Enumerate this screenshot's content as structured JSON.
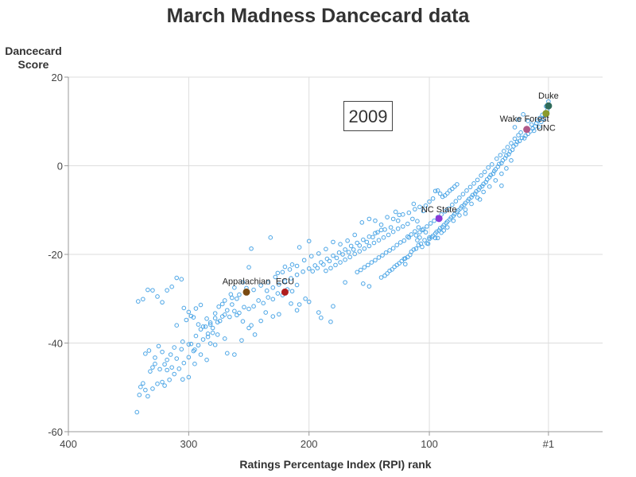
{
  "title": "March Madness Dancecard data",
  "chart_data": {
    "type": "scatter",
    "title": "March Madness Dancecard data",
    "xlabel": "Ratings Percentage Index (RPI) rank",
    "ylabel_lines": [
      "Dancecard",
      "Score"
    ],
    "annotation": "2009",
    "x_reversed": true,
    "xlim": [
      400,
      -44
    ],
    "ylim": [
      -60,
      20
    ],
    "x_ticks": [
      {
        "value": 400,
        "label": "400"
      },
      {
        "value": 300,
        "label": "300"
      },
      {
        "value": 200,
        "label": "200"
      },
      {
        "value": 100,
        "label": "100"
      },
      {
        "value": 1,
        "label": "#1"
      }
    ],
    "y_ticks": [
      {
        "value": 20,
        "label": "20"
      },
      {
        "value": 0,
        "label": "0"
      },
      {
        "value": -20,
        "label": "-20"
      },
      {
        "value": -40,
        "label": "-40"
      },
      {
        "value": -60,
        "label": "-60"
      }
    ],
    "grid": true,
    "colors": {
      "points": "#4da6e6",
      "grid": "#dddddd",
      "axis": "#999999"
    },
    "highlighted": [
      {
        "name": "Duke",
        "x": 1,
        "y": 13.5,
        "color": "#2f6b5a"
      },
      {
        "name": "UNC",
        "x": 3,
        "y": 11.8,
        "color": "#8a9a2c"
      },
      {
        "name": "Wake Forest",
        "x": 19,
        "y": 8.2,
        "color": "#b05a8a"
      },
      {
        "name": "NC State",
        "x": 92,
        "y": -11.9,
        "color": "#8a3ad6"
      },
      {
        "name": "ECU",
        "x": 220,
        "y": -28.5,
        "color": "#b01c1c"
      },
      {
        "name": "Appalachian",
        "x": 252,
        "y": -28.5,
        "color": "#7a4a12"
      }
    ],
    "points": [
      [
        1,
        14.5
      ],
      [
        2,
        12.5
      ],
      [
        4,
        11.5
      ],
      [
        6,
        11.5
      ],
      [
        8,
        10.8
      ],
      [
        10,
        10.2
      ],
      [
        11,
        9.6
      ],
      [
        12,
        8.9
      ],
      [
        14,
        8.4
      ],
      [
        16,
        7.8
      ],
      [
        18,
        7.2
      ],
      [
        20,
        6.8
      ],
      [
        21,
        6.2
      ],
      [
        23,
        6.3
      ],
      [
        25,
        5.6
      ],
      [
        27,
        5.4
      ],
      [
        28,
        4.8
      ],
      [
        30,
        4.4
      ],
      [
        31,
        3.6
      ],
      [
        33,
        3.2
      ],
      [
        34,
        2.6
      ],
      [
        36,
        2.3
      ],
      [
        37,
        1.7
      ],
      [
        39,
        1.2
      ],
      [
        40,
        0.6
      ],
      [
        42,
        0.4
      ],
      [
        43,
        -0.2
      ],
      [
        45,
        -0.8
      ],
      [
        46,
        -1.2
      ],
      [
        47,
        -1.8
      ],
      [
        49,
        -2.1
      ],
      [
        50,
        -2.6
      ],
      [
        52,
        -3.1
      ],
      [
        53,
        -3.7
      ],
      [
        55,
        -4.1
      ],
      [
        56,
        -4.6
      ],
      [
        58,
        -4.9
      ],
      [
        59,
        -5.4
      ],
      [
        61,
        -5.8
      ],
      [
        62,
        -6.3
      ],
      [
        64,
        -6.6
      ],
      [
        65,
        -7.1
      ],
      [
        67,
        -7.5
      ],
      [
        68,
        -7.9
      ],
      [
        70,
        -8.4
      ],
      [
        71,
        -8.8
      ],
      [
        73,
        -9.2
      ],
      [
        74,
        -9.6
      ],
      [
        76,
        -10.1
      ],
      [
        77,
        -10.4
      ],
      [
        79,
        -10.9
      ],
      [
        80,
        -11.3
      ],
      [
        82,
        -11.7
      ],
      [
        83,
        -12.1
      ],
      [
        85,
        -12.6
      ],
      [
        86,
        -12.9
      ],
      [
        88,
        -13.4
      ],
      [
        89,
        -13.8
      ],
      [
        91,
        -14.1
      ],
      [
        92,
        -14.6
      ],
      [
        94,
        -14.9
      ],
      [
        95,
        -15.3
      ],
      [
        97,
        -15.8
      ],
      [
        98,
        -16.1
      ],
      [
        100,
        -16.5
      ],
      [
        24,
        7.5
      ],
      [
        26,
        6.9
      ],
      [
        29,
        6.1
      ],
      [
        32,
        5.1
      ],
      [
        35,
        4.2
      ],
      [
        38,
        3.3
      ],
      [
        41,
        2.4
      ],
      [
        44,
        1.6
      ],
      [
        48,
        0.3
      ],
      [
        51,
        -0.4
      ],
      [
        54,
        -1.4
      ],
      [
        57,
        -2.2
      ],
      [
        60,
        -3.2
      ],
      [
        63,
        -4.0
      ],
      [
        66,
        -4.8
      ],
      [
        69,
        -5.6
      ],
      [
        72,
        -6.4
      ],
      [
        75,
        -7.2
      ],
      [
        78,
        -8.0
      ],
      [
        81,
        -8.8
      ],
      [
        84,
        -9.7
      ],
      [
        87,
        -10.3
      ],
      [
        90,
        -11.0
      ],
      [
        93,
        -11.6
      ],
      [
        96,
        -12.4
      ],
      [
        99,
        -13.0
      ],
      [
        102,
        -13.7
      ],
      [
        105,
        -14.3
      ],
      [
        108,
        -15.0
      ],
      [
        111,
        -15.7
      ],
      [
        32,
        1.2
      ],
      [
        36,
        -0.6
      ],
      [
        40,
        -1.8
      ],
      [
        45,
        -3.3
      ],
      [
        50,
        -4.7
      ],
      [
        55,
        -5.9
      ],
      [
        60,
        -7.2
      ],
      [
        65,
        -8.6
      ],
      [
        70,
        -9.9
      ],
      [
        75,
        -11.2
      ],
      [
        80,
        -12.4
      ],
      [
        85,
        -13.9
      ],
      [
        90,
        -15.1
      ],
      [
        95,
        -16.3
      ],
      [
        101,
        -17.6
      ],
      [
        22,
        11.6
      ],
      [
        18,
        10.1
      ],
      [
        15,
        9.3
      ],
      [
        13,
        7.9
      ],
      [
        9,
        8.8
      ],
      [
        7,
        9.9
      ],
      [
        5,
        10.6
      ],
      [
        3,
        13.4
      ],
      [
        26,
        10.4
      ],
      [
        29,
        8.7
      ],
      [
        40,
        -4.5
      ],
      [
        58,
        -7.6
      ],
      [
        70,
        -10.8
      ],
      [
        88,
        -14.6
      ],
      [
        93,
        -16.3
      ],
      [
        100,
        -16.2
      ],
      [
        108,
        -16.2
      ],
      [
        110,
        -16.8
      ],
      [
        117,
        -16.2
      ],
      [
        120,
        -20.9
      ],
      [
        120,
        -22.2
      ],
      [
        102,
        -17.5
      ],
      [
        104,
        -16.8
      ],
      [
        106,
        -18.3
      ],
      [
        107,
        -17.6
      ],
      [
        109,
        -17.9
      ],
      [
        111,
        -18.7
      ],
      [
        113,
        -18.9
      ],
      [
        115,
        -19.4
      ],
      [
        116,
        -20.1
      ],
      [
        118,
        -20.6
      ],
      [
        121,
        -21.0
      ],
      [
        123,
        -21.5
      ],
      [
        125,
        -22.0
      ],
      [
        127,
        -22.4
      ],
      [
        129,
        -22.8
      ],
      [
        131,
        -23.4
      ],
      [
        133,
        -23.7
      ],
      [
        135,
        -24.3
      ],
      [
        137,
        -24.8
      ],
      [
        140,
        -25.2
      ],
      [
        103,
        -15.0
      ],
      [
        106,
        -14.5
      ],
      [
        109,
        -13.9
      ],
      [
        112,
        -14.8
      ],
      [
        115,
        -15.5
      ],
      [
        118,
        -16.0
      ],
      [
        121,
        -16.9
      ],
      [
        124,
        -17.3
      ],
      [
        127,
        -17.9
      ],
      [
        130,
        -18.6
      ],
      [
        133,
        -19.1
      ],
      [
        136,
        -19.6
      ],
      [
        139,
        -20.2
      ],
      [
        142,
        -20.7
      ],
      [
        145,
        -21.3
      ],
      [
        148,
        -21.8
      ],
      [
        151,
        -22.4
      ],
      [
        154,
        -22.9
      ],
      [
        157,
        -23.5
      ],
      [
        160,
        -24.0
      ],
      [
        110,
        -12.5
      ],
      [
        114,
        -12.0
      ],
      [
        118,
        -13.1
      ],
      [
        122,
        -13.7
      ],
      [
        126,
        -14.2
      ],
      [
        130,
        -14.9
      ],
      [
        134,
        -15.6
      ],
      [
        138,
        -16.2
      ],
      [
        142,
        -16.8
      ],
      [
        146,
        -17.4
      ],
      [
        150,
        -18.1
      ],
      [
        154,
        -18.7
      ],
      [
        158,
        -19.3
      ],
      [
        162,
        -19.9
      ],
      [
        166,
        -20.6
      ],
      [
        170,
        -21.2
      ],
      [
        174,
        -21.8
      ],
      [
        178,
        -22.4
      ],
      [
        182,
        -23.1
      ],
      [
        186,
        -23.7
      ],
      [
        140,
        -14.5
      ],
      [
        145,
        -15.2
      ],
      [
        150,
        -16.0
      ],
      [
        155,
        -16.7
      ],
      [
        160,
        -17.4
      ],
      [
        165,
        -18.1
      ],
      [
        170,
        -18.9
      ],
      [
        175,
        -19.6
      ],
      [
        180,
        -20.3
      ],
      [
        185,
        -21.0
      ],
      [
        190,
        -21.8
      ],
      [
        195,
        -22.5
      ],
      [
        200,
        -23.2
      ],
      [
        205,
        -23.9
      ],
      [
        210,
        -24.6
      ],
      [
        215,
        -25.4
      ],
      [
        220,
        -26.1
      ],
      [
        225,
        -26.8
      ],
      [
        230,
        -27.5
      ],
      [
        235,
        -28.2
      ],
      [
        150,
        -12.0
      ],
      [
        156,
        -12.8
      ],
      [
        162,
        -15.6
      ],
      [
        168,
        -16.9
      ],
      [
        174,
        -17.7
      ],
      [
        180,
        -17.2
      ],
      [
        186,
        -18.8
      ],
      [
        192,
        -19.8
      ],
      [
        198,
        -20.4
      ],
      [
        204,
        -21.3
      ],
      [
        210,
        -22.6
      ],
      [
        216,
        -23.4
      ],
      [
        222,
        -24.0
      ],
      [
        228,
        -25.1
      ],
      [
        234,
        -26.3
      ],
      [
        240,
        -27.0
      ],
      [
        246,
        -28.0
      ],
      [
        252,
        -27.6
      ],
      [
        258,
        -29.1
      ],
      [
        264,
        -29.8
      ],
      [
        150,
        -27.2
      ],
      [
        155,
        -26.6
      ],
      [
        170,
        -26.3
      ],
      [
        180,
        -31.7
      ],
      [
        182,
        -35.2
      ],
      [
        190,
        -34.3
      ],
      [
        192,
        -33.1
      ],
      [
        200,
        -30.7
      ],
      [
        203,
        -30.0
      ],
      [
        208,
        -31.3
      ],
      [
        210,
        -32.6
      ],
      [
        215,
        -31.1
      ],
      [
        225,
        -33.5
      ],
      [
        230,
        -34.0
      ],
      [
        236,
        -33.1
      ],
      [
        240,
        -35.0
      ],
      [
        245,
        -38.1
      ],
      [
        250,
        -36.6
      ],
      [
        255,
        -35.1
      ],
      [
        260,
        -33.7
      ],
      [
        210,
        -26.9
      ],
      [
        214,
        -28.3
      ],
      [
        218,
        -27.9
      ],
      [
        222,
        -29.2
      ],
      [
        226,
        -28.8
      ],
      [
        230,
        -30.1
      ],
      [
        234,
        -29.7
      ],
      [
        238,
        -31.0
      ],
      [
        242,
        -30.4
      ],
      [
        246,
        -31.7
      ],
      [
        250,
        -32.3
      ],
      [
        254,
        -31.9
      ],
      [
        258,
        -33.2
      ],
      [
        262,
        -32.8
      ],
      [
        266,
        -34.1
      ],
      [
        270,
        -33.6
      ],
      [
        274,
        -35.0
      ],
      [
        278,
        -34.4
      ],
      [
        282,
        -35.8
      ],
      [
        286,
        -36.3
      ],
      [
        200,
        -17.0
      ],
      [
        208,
        -18.4
      ],
      [
        214,
        -22.3
      ],
      [
        220,
        -22.8
      ],
      [
        226,
        -24.2
      ],
      [
        232,
        -16.2
      ],
      [
        248,
        -18.7
      ],
      [
        250,
        -22.9
      ],
      [
        255,
        -26.3
      ],
      [
        262,
        -27.5
      ],
      [
        265,
        -29.0
      ],
      [
        270,
        -30.4
      ],
      [
        272,
        -31.2
      ],
      [
        275,
        -31.8
      ],
      [
        278,
        -33.3
      ],
      [
        282,
        -35.4
      ],
      [
        285,
        -34.5
      ],
      [
        290,
        -36.9
      ],
      [
        294,
        -38.4
      ],
      [
        298,
        -40.2
      ],
      [
        260,
        -30.0
      ],
      [
        264,
        -31.3
      ],
      [
        268,
        -32.6
      ],
      [
        272,
        -34.0
      ],
      [
        276,
        -35.3
      ],
      [
        280,
        -36.6
      ],
      [
        284,
        -37.9
      ],
      [
        288,
        -39.2
      ],
      [
        292,
        -40.5
      ],
      [
        296,
        -41.8
      ],
      [
        300,
        -43.2
      ],
      [
        304,
        -44.5
      ],
      [
        308,
        -45.8
      ],
      [
        312,
        -47.0
      ],
      [
        316,
        -48.3
      ],
      [
        320,
        -49.6
      ],
      [
        324,
        -45.9
      ],
      [
        328,
        -44.7
      ],
      [
        332,
        -46.4
      ],
      [
        336,
        -50.6
      ],
      [
        262,
        -42.6
      ],
      [
        270,
        -39.0
      ],
      [
        276,
        -38.1
      ],
      [
        280,
        -37.7
      ],
      [
        284,
        -38.6
      ],
      [
        288,
        -36.3
      ],
      [
        292,
        -35.8
      ],
      [
        296,
        -34.2
      ],
      [
        300,
        -33.0
      ],
      [
        304,
        -32.1
      ],
      [
        306,
        -25.6
      ],
      [
        310,
        -25.3
      ],
      [
        314,
        -27.3
      ],
      [
        318,
        -28.1
      ],
      [
        322,
        -30.8
      ],
      [
        326,
        -29.5
      ],
      [
        330,
        -28.1
      ],
      [
        334,
        -28.0
      ],
      [
        338,
        -30.1
      ],
      [
        342,
        -30.6
      ],
      [
        285,
        -43.8
      ],
      [
        290,
        -42.6
      ],
      [
        295,
        -41.5
      ],
      [
        300,
        -40.3
      ],
      [
        305,
        -39.7
      ],
      [
        310,
        -36.0
      ],
      [
        312,
        -41.0
      ],
      [
        315,
        -42.6
      ],
      [
        318,
        -43.8
      ],
      [
        320,
        -44.8
      ],
      [
        322,
        -42.0
      ],
      [
        325,
        -40.7
      ],
      [
        328,
        -43.3
      ],
      [
        330,
        -45.5
      ],
      [
        333,
        -41.7
      ],
      [
        336,
        -42.4
      ],
      [
        338,
        -49.1
      ],
      [
        340,
        -49.9
      ],
      [
        341,
        -51.7
      ],
      [
        343,
        -55.6
      ],
      [
        290,
        -31.4
      ],
      [
        294,
        -32.2
      ],
      [
        298,
        -33.9
      ],
      [
        302,
        -34.8
      ],
      [
        306,
        -41.4
      ],
      [
        310,
        -43.5
      ],
      [
        314,
        -45.5
      ],
      [
        318,
        -46.1
      ],
      [
        322,
        -48.8
      ],
      [
        326,
        -49.2
      ],
      [
        330,
        -50.3
      ],
      [
        334,
        -52.0
      ],
      [
        295,
        -44.7
      ],
      [
        300,
        -47.7
      ],
      [
        305,
        -48.2
      ],
      [
        282,
        -40.1
      ],
      [
        278,
        -40.4
      ],
      [
        268,
        -42.3
      ],
      [
        256,
        -39.4
      ],
      [
        248,
        -36.0
      ],
      [
        130,
        -12.0
      ],
      [
        135,
        -11.6
      ],
      [
        140,
        -13.3
      ],
      [
        145,
        -12.4
      ],
      [
        125,
        -11.1
      ],
      [
        128,
        -10.4
      ],
      [
        132,
        -13.9
      ],
      [
        137,
        -14.4
      ],
      [
        143,
        -15.0
      ],
      [
        147,
        -16.1
      ],
      [
        152,
        -17.2
      ],
      [
        158,
        -18.0
      ],
      [
        163,
        -18.9
      ],
      [
        167,
        -19.5
      ],
      [
        172,
        -20.0
      ],
      [
        177,
        -20.8
      ],
      [
        183,
        -21.5
      ],
      [
        188,
        -22.3
      ],
      [
        193,
        -23.1
      ],
      [
        197,
        -23.8
      ],
      [
        112,
        -9.8
      ],
      [
        117,
        -10.6
      ],
      [
        122,
        -11.0
      ],
      [
        126,
        -12.4
      ],
      [
        113,
        -8.6
      ],
      [
        108,
        -9.3
      ],
      [
        105,
        -10.2
      ],
      [
        103,
        -9.0
      ],
      [
        100,
        -8.1
      ],
      [
        97,
        -7.4
      ],
      [
        95,
        -5.7
      ],
      [
        93,
        -5.6
      ],
      [
        91,
        -6.3
      ],
      [
        89,
        -7.0
      ],
      [
        87,
        -6.7
      ],
      [
        85,
        -6.2
      ],
      [
        83,
        -5.6
      ],
      [
        81,
        -5.2
      ],
      [
        79,
        -4.7
      ],
      [
        77,
        -4.2
      ]
    ]
  }
}
